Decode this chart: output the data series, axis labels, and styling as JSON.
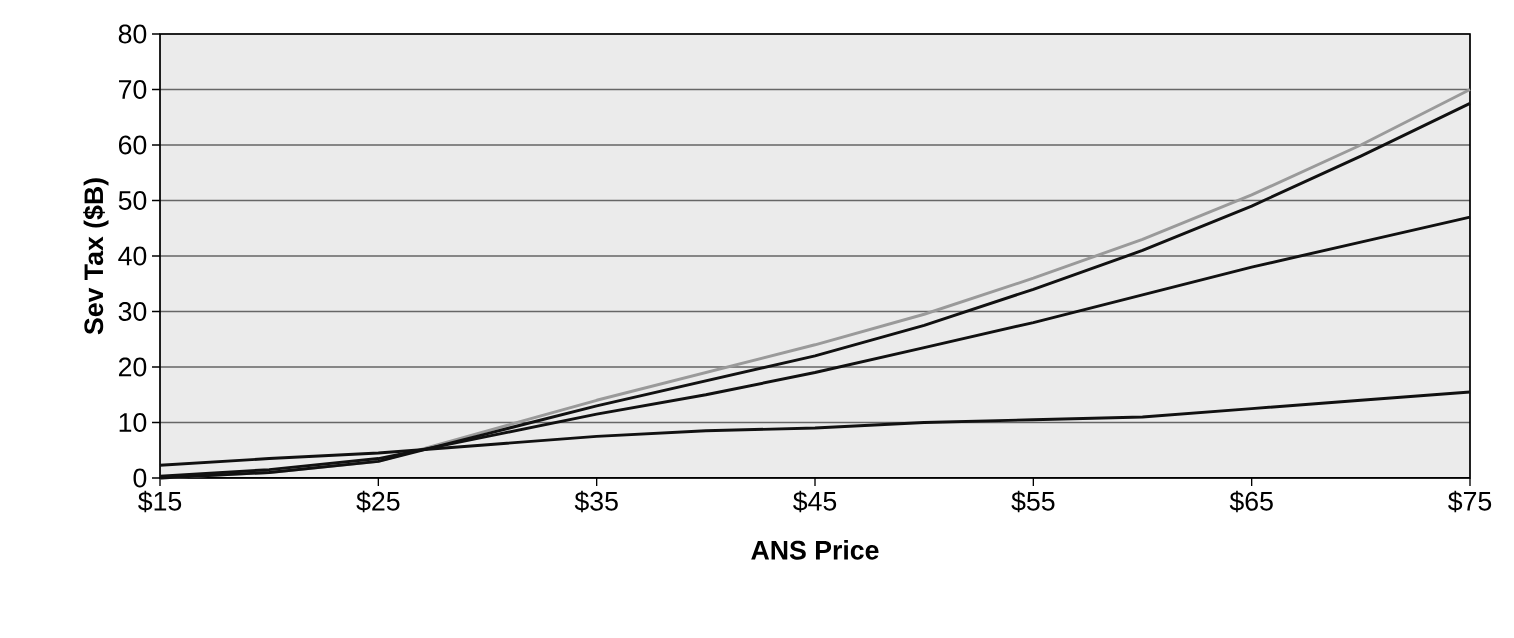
{
  "chart_data": {
    "type": "line",
    "xlabel": "ANS Price",
    "ylabel": "Sev Tax ($B)",
    "x": [
      15,
      20,
      25,
      30,
      35,
      40,
      45,
      50,
      55,
      60,
      65,
      70,
      75
    ],
    "series": [
      {
        "color": "#9a9a9a",
        "values": [
          0,
          1,
          3,
          8.5,
          14,
          19,
          24,
          29.5,
          36,
          43,
          51,
          60,
          70
        ]
      },
      {
        "color": "#111111",
        "values": [
          0,
          1,
          3,
          8,
          13,
          17.5,
          22,
          27.5,
          34,
          41,
          49,
          58,
          67.5
        ]
      },
      {
        "color": "#111111",
        "values": [
          0.3,
          1.5,
          3.5,
          7.5,
          11.5,
          15,
          19,
          23.5,
          28,
          33,
          38,
          42.5,
          47
        ]
      },
      {
        "color": "#111111",
        "values": [
          2.3,
          3.5,
          4.5,
          6,
          7.5,
          8.5,
          9,
          10,
          10.5,
          11,
          12.5,
          14,
          15.5
        ]
      }
    ],
    "xlim": [
      15,
      75
    ],
    "ylim": [
      0,
      80
    ],
    "xticks": [
      {
        "value": 15,
        "label": "$15"
      },
      {
        "value": 25,
        "label": "$25"
      },
      {
        "value": 35,
        "label": "$35"
      },
      {
        "value": 45,
        "label": "$45"
      },
      {
        "value": 55,
        "label": "$55"
      },
      {
        "value": 65,
        "label": "$65"
      },
      {
        "value": 75,
        "label": "$75"
      }
    ],
    "yticks": [
      0,
      10,
      20,
      30,
      40,
      50,
      60,
      70,
      80
    ],
    "grid": "y"
  }
}
